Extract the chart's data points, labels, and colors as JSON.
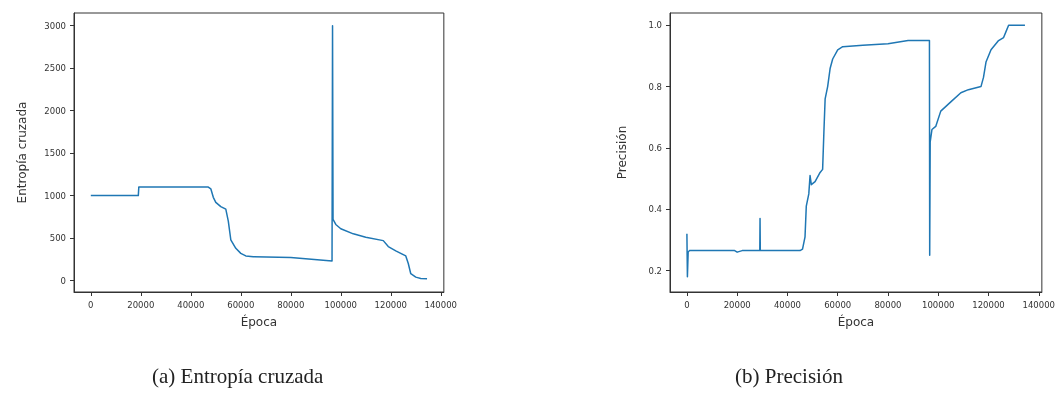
{
  "chart_data": [
    {
      "type": "line",
      "xlabel": "Época",
      "ylabel": "Entropía cruzada",
      "color": "#1f77b4",
      "grid": false,
      "xlim": [
        -6725,
        141225
      ],
      "ylim": [
        -135,
        3150
      ],
      "xticks": [
        0,
        20000,
        40000,
        60000,
        80000,
        100000,
        120000,
        140000
      ],
      "yticks": [
        0,
        500,
        1000,
        1500,
        2000,
        2500,
        3000
      ],
      "x": [
        0,
        19000,
        19200,
        47000,
        48000,
        49000,
        50000,
        52000,
        54000,
        55000,
        56000,
        58000,
        60000,
        62000,
        65000,
        80000,
        96500,
        96700,
        96900,
        98000,
        100000,
        105000,
        110000,
        117000,
        119000,
        122000,
        126000,
        127000,
        128000,
        130000,
        132000,
        134500
      ],
      "values": [
        1000,
        1000,
        1100,
        1100,
        1080,
        980,
        920,
        870,
        840,
        700,
        480,
        380,
        320,
        290,
        280,
        270,
        230,
        3000,
        720,
        660,
        610,
        550,
        510,
        470,
        400,
        350,
        290,
        200,
        80,
        40,
        25,
        20
      ],
      "annotations": [
        "(a) Entropía cruzada"
      ]
    },
    {
      "type": "line",
      "xlabel": "Época",
      "ylabel": "Precisión",
      "color": "#1f77b4",
      "grid": false,
      "xlim": [
        -6725,
        141225
      ],
      "ylim": [
        0.13,
        1.04
      ],
      "xticks": [
        0,
        20000,
        40000,
        60000,
        80000,
        100000,
        120000,
        140000
      ],
      "yticks": [
        0.2,
        0.4,
        0.6,
        0.8,
        {
          "value": 1,
          "label": "1.0"
        }
      ],
      "x": [
        0,
        200,
        500,
        1000,
        19000,
        20000,
        22000,
        29000,
        29100,
        29200,
        45000,
        46000,
        47000,
        47500,
        48500,
        49000,
        49500,
        51000,
        53000,
        54000,
        54500,
        55000,
        56000,
        57000,
        58000,
        60000,
        62000,
        70000,
        80000,
        88000,
        96500,
        96600,
        96800,
        97500,
        99000,
        101000,
        105000,
        109000,
        112000,
        117000,
        118000,
        119000,
        121000,
        124000,
        126000,
        127000,
        128000,
        134500
      ],
      "values": [
        0.32,
        0.18,
        0.26,
        0.265,
        0.265,
        0.26,
        0.265,
        0.265,
        0.37,
        0.265,
        0.265,
        0.27,
        0.31,
        0.41,
        0.45,
        0.51,
        0.48,
        0.49,
        0.52,
        0.53,
        0.65,
        0.76,
        0.8,
        0.86,
        0.89,
        0.92,
        0.93,
        0.935,
        0.94,
        0.95,
        0.95,
        0.25,
        0.62,
        0.66,
        0.67,
        0.72,
        0.75,
        0.78,
        0.79,
        0.8,
        0.83,
        0.88,
        0.92,
        0.95,
        0.96,
        0.98,
        1.0,
        1.0
      ],
      "annotations": [
        "(b) Precisión"
      ]
    }
  ]
}
